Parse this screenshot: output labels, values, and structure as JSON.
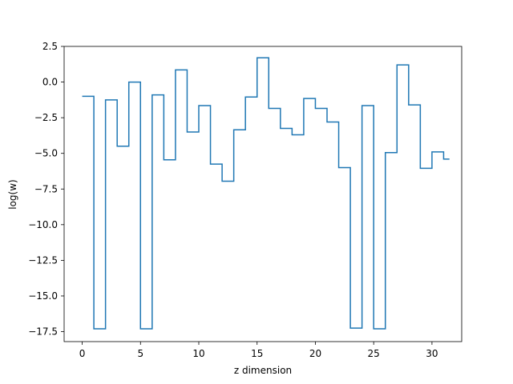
{
  "chart_data": {
    "type": "line",
    "step": "post",
    "title": "",
    "xlabel": "z dimension",
    "ylabel": "log(w)",
    "xlim": [
      -1.55,
      32.55
    ],
    "ylim": [
      -18.2,
      2.5
    ],
    "xticks": [
      0,
      5,
      10,
      15,
      20,
      25,
      30
    ],
    "xtick_labels": [
      "0",
      "5",
      "10",
      "15",
      "20",
      "25",
      "30"
    ],
    "yticks": [
      2.5,
      0.0,
      -2.5,
      -5.0,
      -7.5,
      -10.0,
      -12.5,
      -15.0,
      -17.5
    ],
    "ytick_labels": [
      "2.5",
      "0.0",
      "−2.5",
      "−5.0",
      "−7.5",
      "−10.0",
      "−12.5",
      "−15.0",
      "−17.5"
    ],
    "grid": false,
    "legend": "none",
    "series": [
      {
        "color": "#1f77b4",
        "x": [
          0,
          1,
          2,
          3,
          4,
          5,
          6,
          7,
          8,
          9,
          10,
          11,
          12,
          13,
          14,
          15,
          16,
          17,
          18,
          19,
          20,
          21,
          22,
          23,
          24,
          25,
          26,
          27,
          28,
          29,
          30,
          31
        ],
        "values": [
          -1.0,
          -17.3,
          -1.25,
          -4.5,
          0.0,
          -17.3,
          -0.9,
          -5.45,
          0.85,
          -3.5,
          -1.65,
          -5.75,
          -6.95,
          -3.35,
          -1.05,
          1.7,
          -1.85,
          -3.25,
          -3.7,
          -1.15,
          -1.85,
          -2.8,
          -6.0,
          -17.25,
          -1.65,
          -17.3,
          -4.95,
          1.2,
          -1.6,
          -6.05,
          -4.9,
          -5.4
        ]
      }
    ]
  }
}
